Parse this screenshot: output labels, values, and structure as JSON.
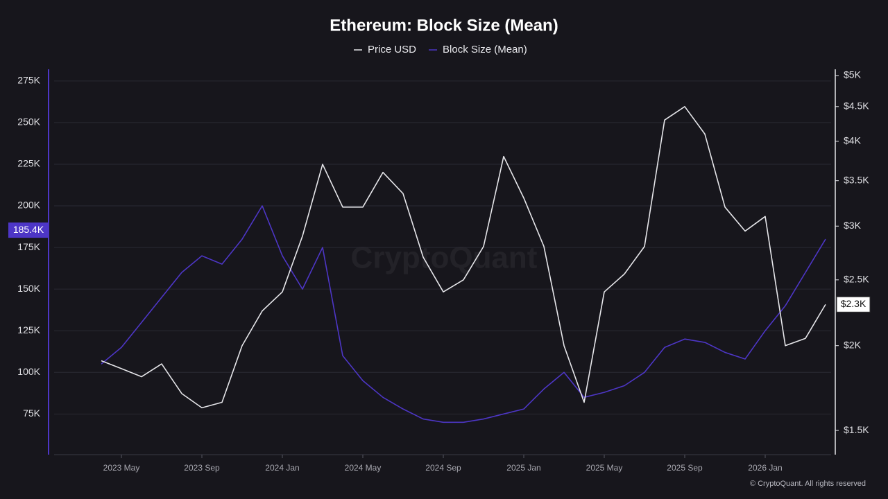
{
  "chart_data": {
    "type": "line",
    "title": "Ethereum: Block Size (Mean)",
    "watermark": "CryptoQuant",
    "footer": "© CryptoQuant. All rights reserved",
    "categories": [
      null,
      "2023 May",
      null,
      null,
      null,
      "2023 Sep",
      null,
      null,
      null,
      "2024 Jan",
      null,
      null,
      null,
      "2024 May",
      null,
      null,
      null,
      "2024 Sep",
      null,
      null,
      null,
      "2025 Jan",
      null,
      null,
      null,
      "2025 May",
      null,
      null,
      null,
      "2025 Sep",
      null,
      null,
      null,
      "2026 Jan",
      null,
      null,
      null
    ],
    "series": [
      {
        "name": "Price USD",
        "color": "#e6e6ea",
        "axis": "y2",
        "values": [
          1900,
          1850,
          1800,
          1880,
          1700,
          1620,
          1650,
          2000,
          2250,
          2400,
          2900,
          3700,
          3200,
          3200,
          3600,
          3350,
          2700,
          2400,
          2500,
          2800,
          3800,
          3300,
          2800,
          2000,
          1650,
          2400,
          2550,
          2800,
          4300,
          4500,
          4100,
          3200,
          2950,
          3100,
          2000,
          2050,
          2300
        ]
      },
      {
        "name": "Block Size (Mean)",
        "color": "#4d36c6",
        "axis": "y",
        "values": [
          105000,
          115000,
          130000,
          145000,
          160000,
          170000,
          165000,
          180000,
          200000,
          170000,
          150000,
          175000,
          110000,
          95000,
          85000,
          78000,
          72000,
          70000,
          70000,
          72000,
          75000,
          78000,
          90000,
          100000,
          85000,
          88000,
          92000,
          100000,
          115000,
          120000,
          118000,
          112000,
          108000,
          125000,
          140000,
          160000,
          180000
        ]
      }
    ],
    "ylim": [
      51000,
      282000
    ],
    "yticks": [
      {
        "value": 75000,
        "label": "75K"
      },
      {
        "value": 100000,
        "label": "100K"
      },
      {
        "value": 125000,
        "label": "125K"
      },
      {
        "value": 150000,
        "label": "150K"
      },
      {
        "value": 175000,
        "label": "175K"
      },
      {
        "value": 200000,
        "label": "200K"
      },
      {
        "value": 225000,
        "label": "225K"
      },
      {
        "value": 250000,
        "label": "250K"
      },
      {
        "value": 275000,
        "label": "275K"
      }
    ],
    "y2lim": [
      1385,
      5107
    ],
    "y2log": true,
    "y2ticks": [
      {
        "value": 1500,
        "label": "$1.5K"
      },
      {
        "value": 2000,
        "label": "$2K"
      },
      {
        "value": 2500,
        "label": "$2.5K"
      },
      {
        "value": 3000,
        "label": "$3K"
      },
      {
        "value": 3500,
        "label": "$3.5K"
      },
      {
        "value": 4000,
        "label": "$4K"
      },
      {
        "value": 4500,
        "label": "$4.5K"
      },
      {
        "value": 5000,
        "label": "$5K"
      }
    ],
    "grid": true,
    "annotations": [
      {
        "value": 185400,
        "label": "185.4K",
        "axis": "y"
      },
      {
        "value": 2300,
        "label": "$2.3K",
        "axis": "y2"
      }
    ]
  }
}
